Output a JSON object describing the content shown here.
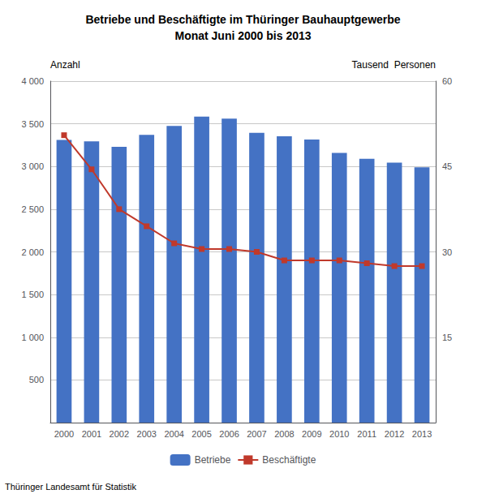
{
  "chart_data": {
    "type": "bar",
    "title": "Betriebe und Beschäftigte im Thüringer Bauhauptgewerbe",
    "subtitle": "Monat Juni 2000 bis 2013",
    "ylabel": "Anzahl",
    "y2label": "Tausend  Personen",
    "annotations": [
      "Thüringer Landesamt für Statistik"
    ],
    "categories": [
      "2000",
      "2001",
      "2002",
      "2003",
      "2004",
      "2005",
      "2006",
      "2007",
      "2008",
      "2009",
      "2010",
      "2011",
      "2012",
      "2013"
    ],
    "series": [
      {
        "name": "Betriebe",
        "type": "bar",
        "color": "#4472C4",
        "values": [
          3310,
          3295,
          3230,
          3370,
          3475,
          3585,
          3560,
          3395,
          3355,
          3315,
          3160,
          3090,
          3045,
          2990
        ]
      },
      {
        "name": "Beschäftigte",
        "type": "line",
        "axis": "y2",
        "color": "#C0392B",
        "marker": "square",
        "values": [
          50.5,
          44.5,
          37.5,
          34.5,
          31.5,
          30.5,
          30.5,
          30.0,
          28.5,
          28.5,
          28.5,
          28.0,
          27.5,
          27.5
        ]
      }
    ],
    "ylim": [
      0,
      4000
    ],
    "yticks": [
      500,
      {
        "value": 1000,
        "label": "1 000"
      },
      {
        "value": 1500,
        "label": "1 500"
      },
      {
        "value": 2000,
        "label": "2 000"
      },
      {
        "value": 2500,
        "label": "2 500"
      },
      {
        "value": 3000,
        "label": "3 000"
      },
      {
        "value": 3500,
        "label": "3 500"
      },
      {
        "value": 4000,
        "label": "4 000"
      }
    ],
    "y2lim": [
      0,
      60
    ],
    "y2ticks": [
      15,
      30,
      45,
      60
    ],
    "grid": true,
    "legend": "bottom"
  }
}
